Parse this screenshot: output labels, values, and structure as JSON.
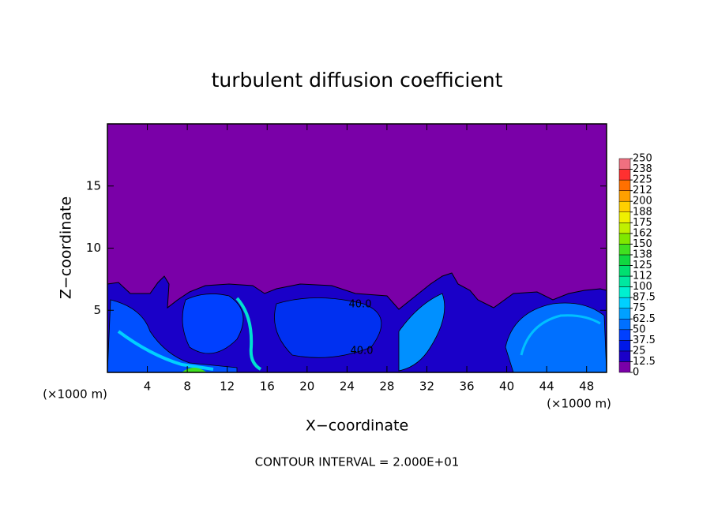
{
  "chart_data": {
    "type": "contour",
    "title": "turbulent diffusion coefficient",
    "x_label": "X−coordinate",
    "y_label": "Z−coordinate",
    "x_unit_label": "(×1000 m)",
    "x_unit_label_right": "(×1000 m)",
    "xlim": [
      0,
      50
    ],
    "ylim": [
      0,
      20
    ],
    "xticks": [
      4,
      8,
      12,
      16,
      20,
      24,
      28,
      32,
      36,
      40,
      44,
      48
    ],
    "yticks": [
      5,
      10,
      15
    ],
    "contour_labels": [
      "40.0",
      "40.0"
    ],
    "footnote": "CONTOUR INTERVAL = 2.000E+01",
    "colorbar": {
      "levels": [
        0,
        12.5,
        25,
        37.5,
        50,
        62.5,
        75,
        87.5,
        100,
        {
          "value": 112.5,
          "label": "112"
        },
        125,
        {
          "value": 137.5,
          "label": "138"
        },
        150,
        {
          "value": 162.5,
          "label": "162"
        },
        175,
        {
          "value": 187.5,
          "label": "188"
        },
        200,
        {
          "value": 212.5,
          "label": "212"
        },
        225,
        {
          "value": 237.5,
          "label": "238"
        },
        250
      ],
      "colors": [
        "#7a00a8",
        "#1a00c8",
        "#0018e8",
        "#0040ff",
        "#0070ff",
        "#00a0ff",
        "#00d0ff",
        "#00f0d0",
        "#00e8a0",
        "#00e070",
        "#10d840",
        "#40e020",
        "#80e800",
        "#c0f000",
        "#f0f000",
        "#ffd000",
        "#ffa000",
        "#ff7000",
        "#ff3030",
        "#f07080"
      ]
    }
  }
}
